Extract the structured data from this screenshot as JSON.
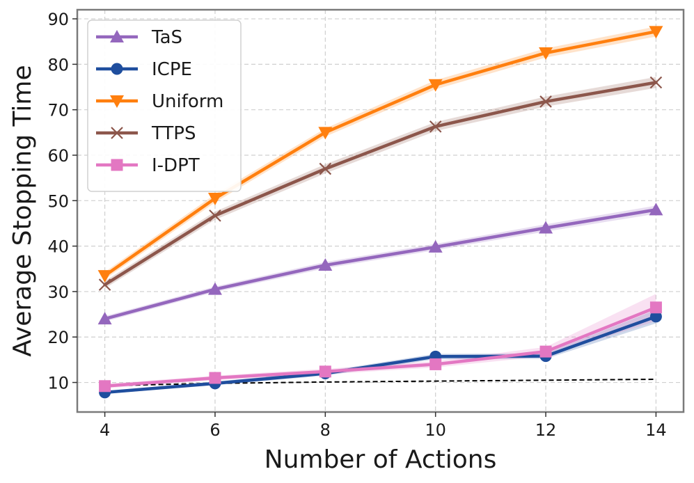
{
  "chart_data": {
    "type": "line",
    "title": "",
    "xlabel": "Number of Actions",
    "ylabel": "Average Stopping Time",
    "x": [
      4,
      6,
      8,
      10,
      12,
      14
    ],
    "xlim": [
      3.5,
      14.5
    ],
    "ylim": [
      3.5,
      92
    ],
    "xticks": [
      4,
      6,
      8,
      10,
      12,
      14
    ],
    "yticks": [
      10,
      20,
      30,
      40,
      50,
      60,
      70,
      80,
      90
    ],
    "grid": true,
    "legend_position": "top-left",
    "series": [
      {
        "name": "TaS",
        "marker": "triangle-up",
        "color": "#9467bd",
        "values": [
          24.0,
          30.5,
          35.8,
          39.8,
          44.0,
          48.0
        ],
        "band": [
          0.6,
          0.6,
          0.7,
          0.7,
          0.8,
          0.9
        ]
      },
      {
        "name": "ICPE",
        "marker": "circle",
        "color": "#1f4e9e",
        "values": [
          7.8,
          9.8,
          12.0,
          15.7,
          15.8,
          24.5
        ],
        "band": [
          0.3,
          0.4,
          0.5,
          0.6,
          0.6,
          1.5
        ]
      },
      {
        "name": "Uniform",
        "marker": "triangle-down",
        "color": "#ff7f0e",
        "values": [
          33.5,
          50.5,
          65.0,
          75.5,
          82.5,
          87.2
        ],
        "band": [
          0.8,
          0.9,
          0.9,
          1.0,
          1.0,
          1.1
        ]
      },
      {
        "name": "TTPS",
        "marker": "x",
        "color": "#8c564b",
        "values": [
          31.5,
          46.7,
          57.0,
          66.3,
          71.8,
          76.0
        ],
        "band": [
          0.8,
          0.9,
          1.0,
          1.0,
          1.1,
          1.2
        ]
      },
      {
        "name": "I-DPT",
        "marker": "square",
        "color": "#e377c2",
        "values": [
          9.2,
          11.0,
          12.4,
          14.0,
          16.8,
          26.5
        ],
        "band": [
          0.5,
          0.5,
          0.6,
          0.7,
          1.0,
          3.0
        ]
      }
    ],
    "reference_line": {
      "style": "dashed",
      "color": "#000000",
      "x": [
        4,
        6,
        8,
        10,
        12,
        14
      ],
      "values": [
        9.3,
        9.8,
        10.1,
        10.3,
        10.5,
        10.7
      ]
    }
  }
}
